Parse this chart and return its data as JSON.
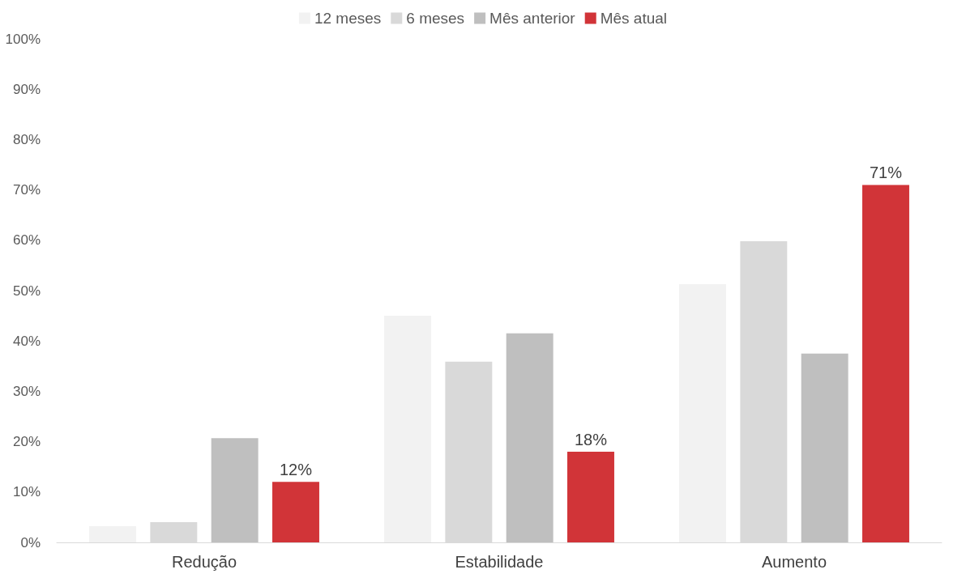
{
  "chart_data": {
    "type": "bar",
    "categories": [
      "Redução",
      "Estabilidade",
      "Aumento"
    ],
    "series": [
      {
        "name": "12 meses",
        "color": "#f2f2f2",
        "values": [
          3.2,
          45.0,
          51.3
        ]
      },
      {
        "name": "6 meses",
        "color": "#d9d9d9",
        "values": [
          4.0,
          35.9,
          59.8
        ]
      },
      {
        "name": "Mês anterior",
        "color": "#bfbfbf",
        "values": [
          20.7,
          41.5,
          37.5
        ]
      },
      {
        "name": "Mês atual",
        "color": "#d13438",
        "values": [
          12,
          18,
          71
        ],
        "value_labels": [
          "12%",
          "18%",
          "71%"
        ]
      }
    ],
    "ylim": [
      0,
      100
    ],
    "yticks": [
      {
        "value": 0,
        "label": "0%"
      },
      {
        "value": 10,
        "label": "10%"
      },
      {
        "value": 20,
        "label": "20%"
      },
      {
        "value": 30,
        "label": "30%"
      },
      {
        "value": 40,
        "label": "40%"
      },
      {
        "value": 50,
        "label": "50%"
      },
      {
        "value": 60,
        "label": "60%"
      },
      {
        "value": 70,
        "label": "70%"
      },
      {
        "value": 80,
        "label": "80%"
      },
      {
        "value": 90,
        "label": "90%"
      },
      {
        "value": 100,
        "label": "100%"
      }
    ],
    "grid": false,
    "legend": "top"
  }
}
